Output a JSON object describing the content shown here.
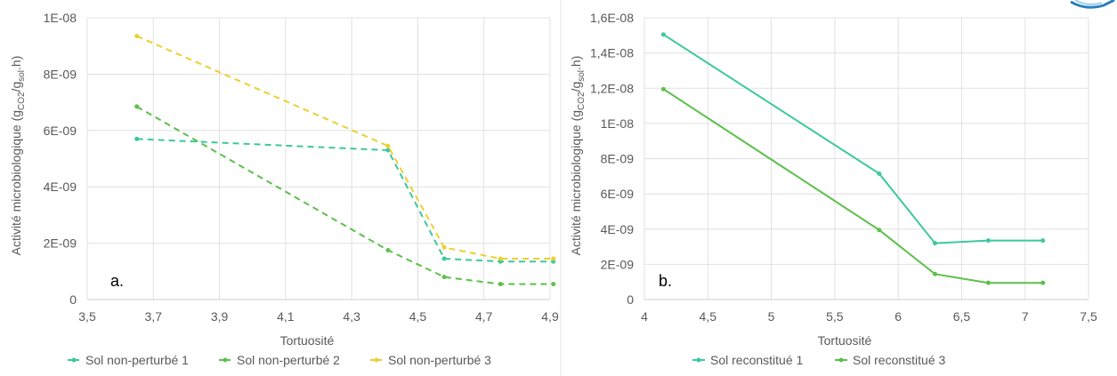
{
  "chart_data": [
    {
      "type": "line",
      "panel_label": "a.",
      "xlabel": "Tortuosité",
      "ylabel_parts": {
        "before": "Activité microbiologique (g",
        "sub1": "CO2",
        "mid": "/g",
        "sub2": "sol",
        "after": ".h)"
      },
      "xlim": [
        3.5,
        4.9
      ],
      "ylim": [
        0,
        1e-08
      ],
      "x_ticks": [
        3.5,
        3.7,
        3.9,
        4.1,
        4.3,
        4.5,
        4.7,
        4.9
      ],
      "x_tick_labels": [
        "3,5",
        "3,7",
        "3,9",
        "4,1",
        "4,3",
        "4,5",
        "4,7",
        "4,9"
      ],
      "y_ticks": [
        0,
        2e-09,
        4e-09,
        6e-09,
        8e-09,
        1e-08
      ],
      "y_tick_labels": [
        "0",
        "2E-09",
        "4E-09",
        "6E-09",
        "8E-09",
        "1E-08"
      ],
      "grid": true,
      "legend_position": "bottom",
      "series": [
        {
          "name": "Sol non-perturbé 1",
          "color": "#3cc8a0",
          "dash": true,
          "x": [
            3.65,
            4.41,
            4.58,
            4.75,
            4.91
          ],
          "y": [
            5.7e-09,
            5.3e-09,
            1.45e-09,
            1.35e-09,
            1.35e-09
          ]
        },
        {
          "name": "Sol non-perturbé 2",
          "color": "#5cc04a",
          "dash": true,
          "x": [
            3.65,
            4.41,
            4.58,
            4.75,
            4.91
          ],
          "y": [
            6.85e-09,
            1.75e-09,
            8e-10,
            5.5e-10,
            5.5e-10
          ]
        },
        {
          "name": "Sol non-perturbé 3",
          "color": "#ecd030",
          "dash": true,
          "x": [
            3.65,
            4.41,
            4.58,
            4.75,
            4.91
          ],
          "y": [
            9.35e-09,
            5.45e-09,
            1.85e-09,
            1.45e-09,
            1.45e-09
          ]
        }
      ]
    },
    {
      "type": "line",
      "panel_label": "b.",
      "xlabel": "Tortuosité",
      "ylabel_parts": {
        "before": "Activité microbiologique (g",
        "sub1": "CO2",
        "mid": "/g",
        "sub2": "sol",
        "after": ".h)"
      },
      "xlim": [
        4,
        7.5
      ],
      "ylim": [
        0,
        1.6e-08
      ],
      "x_ticks": [
        4,
        4.5,
        5,
        5.5,
        6,
        6.5,
        7,
        7.5
      ],
      "x_tick_labels": [
        "4",
        "4,5",
        "5",
        "5,5",
        "6",
        "6,5",
        "7",
        "7,5"
      ],
      "y_ticks": [
        0,
        2e-09,
        4e-09,
        6e-09,
        8e-09,
        1e-08,
        1.2e-08,
        1.4e-08,
        1.6e-08
      ],
      "y_tick_labels": [
        "0",
        "2E-09",
        "4E-09",
        "6E-09",
        "8E-09",
        "1E-08",
        "1,2E-08",
        "1,4E-08",
        "1,6E-08"
      ],
      "grid": true,
      "legend_position": "bottom",
      "series": [
        {
          "name": "Sol reconstitué 1",
          "color": "#3cc8a0",
          "dash": false,
          "x": [
            4.15,
            5.85,
            6.29,
            6.71,
            7.14
          ],
          "y": [
            1.505e-08,
            7.15e-09,
            3.2e-09,
            3.35e-09,
            3.35e-09
          ]
        },
        {
          "name": "Sol reconstitué 3",
          "color": "#5cc04a",
          "dash": false,
          "x": [
            4.15,
            5.85,
            6.29,
            6.71,
            7.14
          ],
          "y": [
            1.195e-08,
            3.95e-09,
            1.45e-09,
            9.5e-10,
            9.5e-10
          ]
        }
      ]
    }
  ]
}
